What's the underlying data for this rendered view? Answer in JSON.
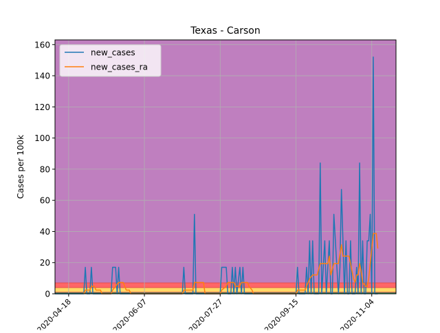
{
  "chart_data": {
    "type": "line",
    "title": "Texas - Carson",
    "xlabel": "",
    "ylabel": "Cases per 100k",
    "x_ticks": [
      "2020-04-18",
      "2020-06-07",
      "2020-07-27",
      "2020-09-15",
      "2020-11-04"
    ],
    "x_range": [
      "2020-04-09",
      "2020-11-20"
    ],
    "ylim": [
      0,
      163
    ],
    "y_ticks": [
      0,
      20,
      40,
      60,
      80,
      100,
      120,
      140,
      160
    ],
    "grid": true,
    "legend_position": "top-left",
    "background_bands": [
      {
        "from": 0,
        "to": 1,
        "color": "#2e8b57"
      },
      {
        "from": 1,
        "to": 4,
        "color": "#ffd966"
      },
      {
        "from": 4,
        "to": 7,
        "color": "#ff6666"
      },
      {
        "from": 7,
        "to": 163,
        "color": "#bf7fbf"
      }
    ],
    "series": [
      {
        "name": "new_cases",
        "color": "#1f77b4",
        "points": [
          [
            "2020-04-09",
            0
          ],
          [
            "2020-04-28",
            0
          ],
          [
            "2020-04-29",
            17
          ],
          [
            "2020-04-30",
            0
          ],
          [
            "2020-05-02",
            0
          ],
          [
            "2020-05-03",
            17
          ],
          [
            "2020-05-04",
            0
          ],
          [
            "2020-05-16",
            0
          ],
          [
            "2020-05-17",
            17
          ],
          [
            "2020-05-19",
            17
          ],
          [
            "2020-05-20",
            0
          ],
          [
            "2020-05-21",
            17
          ],
          [
            "2020-05-22",
            0
          ],
          [
            "2020-07-02",
            0
          ],
          [
            "2020-07-03",
            17
          ],
          [
            "2020-07-04",
            0
          ],
          [
            "2020-07-09",
            0
          ],
          [
            "2020-07-10",
            51
          ],
          [
            "2020-07-11",
            0
          ],
          [
            "2020-07-27",
            0
          ],
          [
            "2020-07-28",
            17
          ],
          [
            "2020-07-31",
            17
          ],
          [
            "2020-08-01",
            0
          ],
          [
            "2020-08-03",
            0
          ],
          [
            "2020-08-04",
            17
          ],
          [
            "2020-08-05",
            0
          ],
          [
            "2020-08-06",
            17
          ],
          [
            "2020-08-07",
            0
          ],
          [
            "2020-08-09",
            17
          ],
          [
            "2020-08-10",
            0
          ],
          [
            "2020-08-11",
            17
          ],
          [
            "2020-08-12",
            0
          ],
          [
            "2020-09-15",
            0
          ],
          [
            "2020-09-16",
            17
          ],
          [
            "2020-09-17",
            0
          ],
          [
            "2020-09-21",
            0
          ],
          [
            "2020-09-22",
            17
          ],
          [
            "2020-09-23",
            0
          ],
          [
            "2020-09-24",
            34
          ],
          [
            "2020-09-25",
            0
          ],
          [
            "2020-09-26",
            34
          ],
          [
            "2020-09-27",
            0
          ],
          [
            "2020-09-30",
            0
          ],
          [
            "2020-10-01",
            84
          ],
          [
            "2020-10-02",
            0
          ],
          [
            "2020-10-04",
            34
          ],
          [
            "2020-10-05",
            0
          ],
          [
            "2020-10-07",
            34
          ],
          [
            "2020-10-08",
            0
          ],
          [
            "2020-10-09",
            0
          ],
          [
            "2020-10-10",
            51
          ],
          [
            "2020-10-11",
            34
          ],
          [
            "2020-10-12",
            17
          ],
          [
            "2020-10-13",
            0
          ],
          [
            "2020-10-14",
            17
          ],
          [
            "2020-10-15",
            67
          ],
          [
            "2020-10-16",
            34
          ],
          [
            "2020-10-17",
            0
          ],
          [
            "2020-10-18",
            34
          ],
          [
            "2020-10-19",
            0
          ],
          [
            "2020-10-20",
            0
          ],
          [
            "2020-10-21",
            34
          ],
          [
            "2020-10-22",
            0
          ],
          [
            "2020-10-24",
            0
          ],
          [
            "2020-10-25",
            17
          ],
          [
            "2020-10-26",
            0
          ],
          [
            "2020-10-27",
            84
          ],
          [
            "2020-10-28",
            0
          ],
          [
            "2020-10-29",
            34
          ],
          [
            "2020-10-30",
            0
          ],
          [
            "2020-10-31",
            0
          ],
          [
            "2020-11-01",
            34
          ],
          [
            "2020-11-02",
            34
          ],
          [
            "2020-11-03",
            51
          ],
          [
            "2020-11-04",
            0
          ],
          [
            "2020-11-05",
            152
          ],
          [
            "2020-11-06",
            0
          ],
          [
            "2020-11-08",
            0
          ]
        ]
      },
      {
        "name": "new_cases_ra",
        "color": "#ff7f0e",
        "points": [
          [
            "2020-04-28",
            0
          ],
          [
            "2020-04-29",
            2.4
          ],
          [
            "2020-05-02",
            2.4
          ],
          [
            "2020-05-03",
            4.8
          ],
          [
            "2020-05-05",
            4.8
          ],
          [
            "2020-05-06",
            2.4
          ],
          [
            "2020-05-09",
            2.4
          ],
          [
            "2020-05-10",
            0
          ],
          [
            "2020-05-16",
            0
          ],
          [
            "2020-05-17",
            2.4
          ],
          [
            "2020-05-19",
            4.8
          ],
          [
            "2020-05-21",
            7.3
          ],
          [
            "2020-05-24",
            7.3
          ],
          [
            "2020-05-25",
            4.8
          ],
          [
            "2020-05-26",
            2.4
          ],
          [
            "2020-05-28",
            2.4
          ],
          [
            "2020-05-29",
            0
          ],
          [
            "2020-07-02",
            0
          ],
          [
            "2020-07-03",
            2.4
          ],
          [
            "2020-07-09",
            2.4
          ],
          [
            "2020-07-10",
            7.3
          ],
          [
            "2020-07-16",
            7.3
          ],
          [
            "2020-07-17",
            0
          ],
          [
            "2020-07-27",
            0
          ],
          [
            "2020-07-28",
            2.4
          ],
          [
            "2020-07-31",
            4.8
          ],
          [
            "2020-08-01",
            7.3
          ],
          [
            "2020-08-05",
            7.3
          ],
          [
            "2020-08-06",
            4.8
          ],
          [
            "2020-08-09",
            4.8
          ],
          [
            "2020-08-10",
            7.3
          ],
          [
            "2020-08-14",
            7.3
          ],
          [
            "2020-08-15",
            4.8
          ],
          [
            "2020-08-17",
            2.4
          ],
          [
            "2020-08-18",
            0
          ],
          [
            "2020-09-15",
            0
          ],
          [
            "2020-09-16",
            2.4
          ],
          [
            "2020-09-21",
            2.4
          ],
          [
            "2020-09-22",
            4.8
          ],
          [
            "2020-09-24",
            9.7
          ],
          [
            "2020-09-26",
            12.1
          ],
          [
            "2020-09-29",
            12.1
          ],
          [
            "2020-10-01",
            19.4
          ],
          [
            "2020-10-04",
            19.4
          ],
          [
            "2020-10-06",
            19.4
          ],
          [
            "2020-10-07",
            24.2
          ],
          [
            "2020-10-08",
            12.1
          ],
          [
            "2020-10-10",
            19.4
          ],
          [
            "2020-10-13",
            19.4
          ],
          [
            "2020-10-15",
            31.5
          ],
          [
            "2020-10-16",
            24.2
          ],
          [
            "2020-10-18",
            24.2
          ],
          [
            "2020-10-20",
            24.2
          ],
          [
            "2020-10-21",
            19.4
          ],
          [
            "2020-10-22",
            14.5
          ],
          [
            "2020-10-23",
            9.7
          ],
          [
            "2020-10-24",
            7.3
          ],
          [
            "2020-10-25",
            12.1
          ],
          [
            "2020-10-26",
            12.1
          ],
          [
            "2020-10-27",
            19.4
          ],
          [
            "2020-10-28",
            14.5
          ],
          [
            "2020-10-29",
            7.3
          ],
          [
            "2020-10-31",
            4.8
          ],
          [
            "2020-11-01",
            4.8
          ],
          [
            "2020-11-02",
            9.7
          ],
          [
            "2020-11-03",
            19.4
          ],
          [
            "2020-11-04",
            29.0
          ],
          [
            "2020-11-05",
            38.7
          ],
          [
            "2020-11-07",
            38.7
          ],
          [
            "2020-11-08",
            29.0
          ]
        ]
      }
    ]
  }
}
